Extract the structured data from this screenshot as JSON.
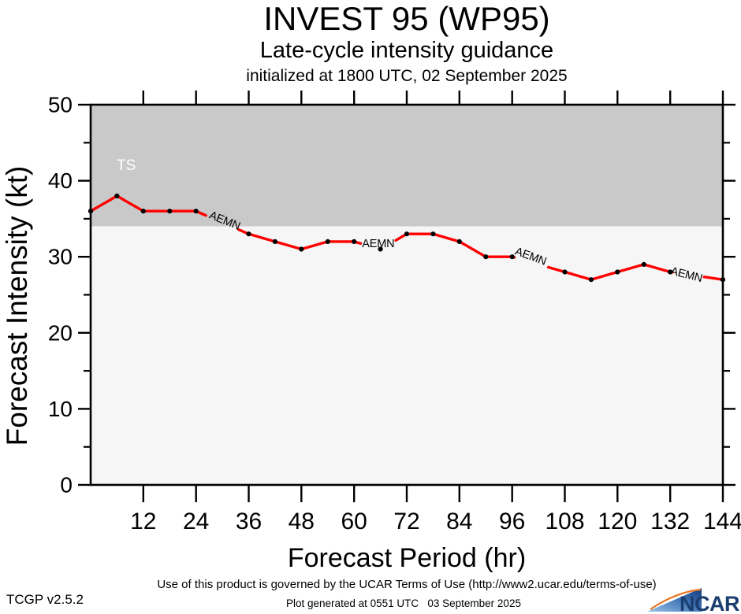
{
  "header": {
    "title": "INVEST 95 (WP95)",
    "subtitle": "Late-cycle intensity guidance",
    "init_line": "initialized at 1800 UTC, 02 September 2025"
  },
  "chart_data": {
    "type": "line",
    "title": "INVEST 95 (WP95)",
    "xlabel": "Forecast Period (hr)",
    "ylabel": "Forecast Intensity (kt)",
    "xlim": [
      0,
      144
    ],
    "ylim": [
      0,
      50
    ],
    "x_ticks_major": [
      12,
      24,
      36,
      48,
      60,
      72,
      84,
      96,
      108,
      120,
      132,
      144
    ],
    "y_ticks_major": [
      0,
      10,
      20,
      30,
      40,
      50
    ],
    "y_ticks_minor": [
      5,
      15,
      25,
      35,
      45
    ],
    "grid": false,
    "ts_threshold_kt": 34,
    "ts_label": "TS",
    "series": [
      {
        "name": "AEMN",
        "color": "#ff0000",
        "x": [
          0,
          6,
          12,
          18,
          24,
          30,
          36,
          42,
          48,
          54,
          60,
          66,
          72,
          78,
          84,
          90,
          96,
          102,
          108,
          114,
          120,
          126,
          132,
          138,
          144
        ],
        "values": [
          36,
          38,
          36,
          36,
          36,
          34.5,
          33,
          32,
          31,
          32,
          32,
          31,
          33,
          33,
          32,
          30,
          30,
          29,
          28,
          27,
          28,
          29,
          28,
          27.5,
          27
        ],
        "estimated_hidden_hours": [
          30,
          102,
          138
        ]
      }
    ],
    "line_gaps_hr": [
      [
        26.4,
        33.7
      ],
      [
        61.6,
        69.4
      ],
      [
        96.6,
        104.2
      ],
      [
        132.5,
        139.6
      ]
    ],
    "line_labels": [
      {
        "text": "AEMN",
        "hr": 30.5,
        "kt": 34.7,
        "rotate_deg": 22
      },
      {
        "text": "AEMN",
        "hr": 65.5,
        "kt": 31.7,
        "rotate_deg": 0
      },
      {
        "text": "AEMN",
        "hr": 100.2,
        "kt": 30.0,
        "rotate_deg": 20
      },
      {
        "text": "AEMN",
        "hr": 135.7,
        "kt": 27.6,
        "rotate_deg": 14
      }
    ]
  },
  "footer": {
    "terms_line": "Use of this product is governed by the UCAR Terms of Use (http://www2.ucar.edu/terms-of-use)",
    "generated_line": "Plot generated at 0551 UTC   03 September 2025",
    "version": "TCGP v2.5.2",
    "ncar_text": "NCAR"
  },
  "colors": {
    "ts_band": "#c9c9c9",
    "plot_bg": "#f6f6f6",
    "line": "#ff0000",
    "marker": "#000000",
    "frame": "#000000",
    "ts_label_text": "#ffffff",
    "ncar_navy": "#1b3e70",
    "ncar_orange": "#e87722",
    "ncar_blue_light": "#9cc3e8",
    "ncar_blue_dark": "#123a7d"
  }
}
